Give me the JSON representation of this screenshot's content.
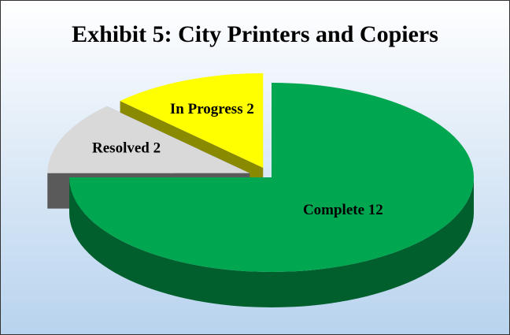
{
  "chart_data": {
    "type": "pie3d",
    "title": "Exhibit 5: City Printers and Copiers",
    "values": [
      12,
      2,
      2
    ],
    "value_labels": [
      "Complete 12",
      "Resolved 2",
      "In Progress 2"
    ],
    "colors": [
      "#00a650",
      "#d9d9d9",
      "#ffff00"
    ],
    "side_colors": [
      "#005f2c",
      "#5a5a5a",
      "#8a8a00"
    ]
  }
}
